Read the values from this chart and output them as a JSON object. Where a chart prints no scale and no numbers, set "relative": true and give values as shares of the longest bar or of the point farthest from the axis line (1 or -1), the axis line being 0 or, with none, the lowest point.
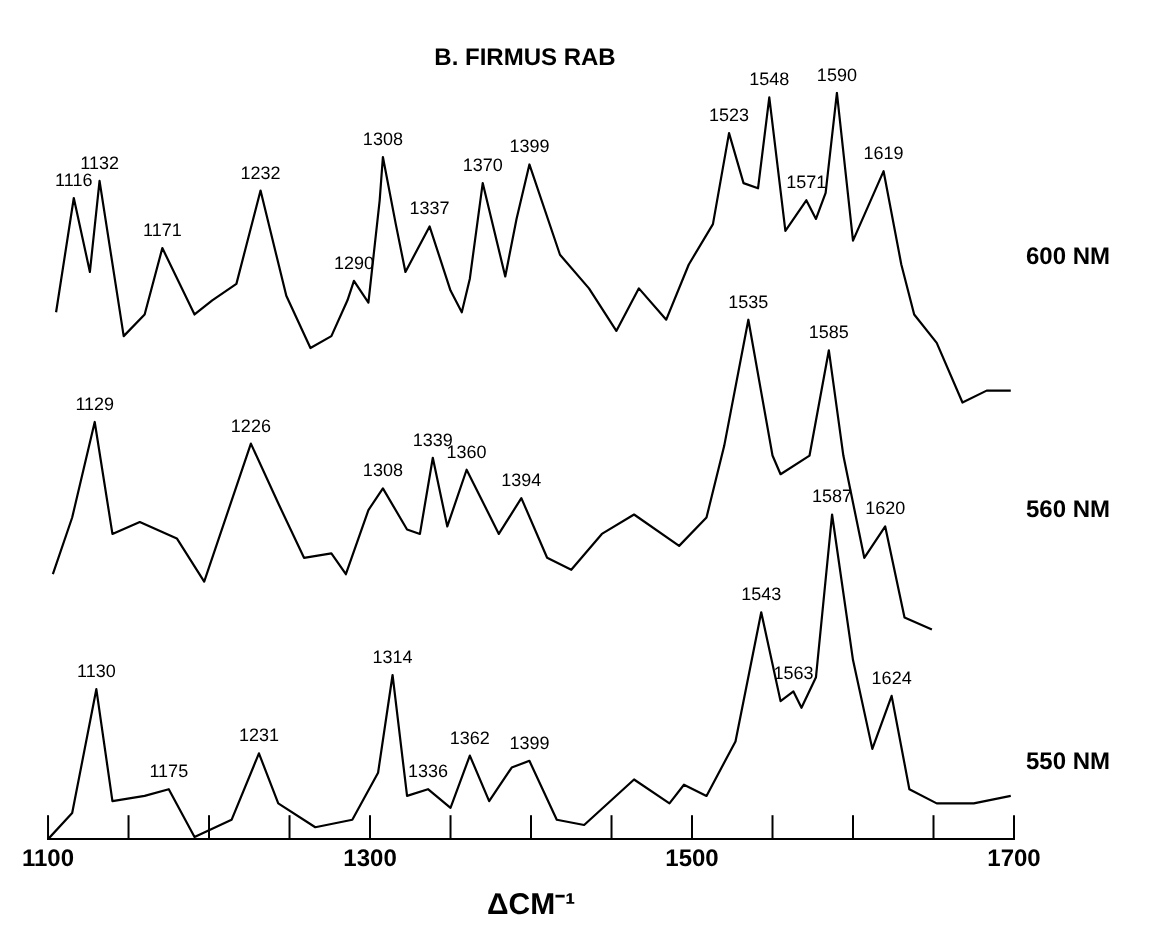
{
  "chart_data": {
    "type": "line",
    "title": "B. FIRMUS RAB",
    "xlabel": "ΔCM⁻¹",
    "relative": true,
    "xlim": [
      1100,
      1700
    ],
    "xticks": [
      1100,
      {
        "value": 1150,
        "label": null
      },
      {
        "value": 1200,
        "label": null
      },
      {
        "value": 1250,
        "label": null
      },
      1300,
      {
        "value": 1350,
        "label": null
      },
      {
        "value": 1400,
        "label": null
      },
      {
        "value": 1450,
        "label": null
      },
      1500,
      {
        "value": 1550,
        "label": null
      },
      {
        "value": 1600,
        "label": null
      },
      {
        "value": 1650,
        "label": null
      },
      1700
    ],
    "grid": false,
    "legend": false,
    "marker": "none",
    "line_style": "solid",
    "series": [
      {
        "name": "600 NM",
        "color": "#000000",
        "x": [
          1105,
          1116,
          1126,
          1132,
          1147,
          1160,
          1171,
          1191,
          1202,
          1217,
          1232,
          1248,
          1263,
          1276,
          1286,
          1290,
          1299,
          1306,
          1308,
          1316,
          1322,
          1337,
          1350,
          1357,
          1362,
          1370,
          1384,
          1391,
          1399,
          1418,
          1436,
          1453,
          1467,
          1484,
          1498,
          1513,
          1523,
          1532,
          1541,
          1548,
          1558,
          1571,
          1577,
          1583,
          1590,
          1600,
          1619,
          1630,
          1638,
          1652,
          1668,
          1683,
          1698
        ],
        "values": [
          0.706,
          0.859,
          0.76,
          0.882,
          0.674,
          0.703,
          0.792,
          0.703,
          0.722,
          0.744,
          0.869,
          0.728,
          0.658,
          0.674,
          0.722,
          0.748,
          0.719,
          0.856,
          0.914,
          0.824,
          0.76,
          0.821,
          0.735,
          0.706,
          0.751,
          0.879,
          0.754,
          0.831,
          0.904,
          0.783,
          0.738,
          0.681,
          0.738,
          0.696,
          0.77,
          0.824,
          0.946,
          0.879,
          0.872,
          0.994,
          0.815,
          0.856,
          0.831,
          0.866,
          1,
          0.802,
          0.895,
          0.77,
          0.703,
          0.665,
          0.585,
          0.601,
          0.601
        ]
      },
      {
        "name": "560 NM",
        "color": "#000000",
        "x": [
          1103,
          1115,
          1129,
          1140,
          1157,
          1180,
          1197,
          1226,
          1243,
          1259,
          1276,
          1285,
          1299,
          1308,
          1323,
          1331,
          1339,
          1348,
          1360,
          1380,
          1394,
          1410,
          1425,
          1444,
          1464,
          1492,
          1509,
          1520,
          1535,
          1550,
          1555,
          1573,
          1585,
          1594,
          1607,
          1620,
          1632,
          1649
        ],
        "values": [
          0.355,
          0.431,
          0.559,
          0.409,
          0.425,
          0.403,
          0.345,
          0.53,
          0.45,
          0.377,
          0.383,
          0.355,
          0.441,
          0.47,
          0.415,
          0.409,
          0.511,
          0.419,
          0.495,
          0.409,
          0.457,
          0.377,
          0.361,
          0.409,
          0.435,
          0.393,
          0.431,
          0.527,
          0.696,
          0.514,
          0.489,
          0.514,
          0.655,
          0.514,
          0.377,
          0.419,
          0.297,
          0.281
        ]
      },
      {
        "name": "550 NM",
        "color": "#000000",
        "x": [
          1100,
          1115,
          1130,
          1140,
          1160,
          1175,
          1191,
          1214,
          1231,
          1243,
          1266,
          1289,
          1305,
          1314,
          1323,
          1336,
          1350,
          1362,
          1374,
          1388,
          1399,
          1416,
          1433,
          1464,
          1486,
          1495,
          1509,
          1527,
          1543,
          1555,
          1563,
          1568,
          1577,
          1587,
          1600,
          1612,
          1624,
          1635,
          1652,
          1675,
          1698
        ],
        "values": [
          0,
          0.035,
          0.201,
          0.051,
          0.058,
          0.067,
          0.003,
          0.026,
          0.115,
          0.048,
          0.016,
          0.026,
          0.089,
          0.22,
          0.058,
          0.067,
          0.042,
          0.112,
          0.051,
          0.096,
          0.105,
          0.026,
          0.019,
          0.08,
          0.048,
          0.073,
          0.058,
          0.131,
          0.304,
          0.185,
          0.198,
          0.176,
          0.217,
          0.435,
          0.24,
          0.121,
          0.192,
          0.067,
          0.048,
          0.048,
          0.058
        ]
      }
    ],
    "annotations": [
      {
        "text": "1116",
        "x": 1116,
        "y": 0.859
      },
      {
        "text": "1132",
        "x": 1132,
        "y": 0.882
      },
      {
        "text": "1171",
        "x": 1171,
        "y": 0.792
      },
      {
        "text": "1232",
        "x": 1232,
        "y": 0.869
      },
      {
        "text": "1290",
        "x": 1290,
        "y": 0.748
      },
      {
        "text": "1308",
        "x": 1308,
        "y": 0.914
      },
      {
        "text": "1337",
        "x": 1337,
        "y": 0.821
      },
      {
        "text": "1370",
        "x": 1370,
        "y": 0.879
      },
      {
        "text": "1399",
        "x": 1399,
        "y": 0.904
      },
      {
        "text": "1523",
        "x": 1523,
        "y": 0.946
      },
      {
        "text": "1548",
        "x": 1548,
        "y": 0.994
      },
      {
        "text": "1571",
        "x": 1571,
        "y": 0.856
      },
      {
        "text": "1590",
        "x": 1590,
        "y": 1
      },
      {
        "text": "1619",
        "x": 1619,
        "y": 0.895
      },
      {
        "text": "1129",
        "x": 1129,
        "y": 0.559
      },
      {
        "text": "1226",
        "x": 1226,
        "y": 0.53
      },
      {
        "text": "1308",
        "x": 1308,
        "y": 0.47
      },
      {
        "text": "1339",
        "x": 1339,
        "y": 0.511
      },
      {
        "text": "1360",
        "x": 1360,
        "y": 0.495
      },
      {
        "text": "1394",
        "x": 1394,
        "y": 0.457
      },
      {
        "text": "1535",
        "x": 1535,
        "y": 0.696
      },
      {
        "text": "1585",
        "x": 1585,
        "y": 0.655
      },
      {
        "text": "1620",
        "x": 1620,
        "y": 0.419
      },
      {
        "text": "1130",
        "x": 1130,
        "y": 0.201
      },
      {
        "text": "1175",
        "x": 1175,
        "y": 0.067
      },
      {
        "text": "1231",
        "x": 1231,
        "y": 0.115
      },
      {
        "text": "1314",
        "x": 1314,
        "y": 0.22
      },
      {
        "text": "1336",
        "x": 1336,
        "y": 0.067
      },
      {
        "text": "1362",
        "x": 1362,
        "y": 0.112
      },
      {
        "text": "1399",
        "x": 1399,
        "y": 0.105
      },
      {
        "text": "1543",
        "x": 1543,
        "y": 0.304
      },
      {
        "text": "1563",
        "x": 1563,
        "y": 0.198
      },
      {
        "text": "1587",
        "x": 1587,
        "y": 0.435
      },
      {
        "text": "1624",
        "x": 1624,
        "y": 0.192
      }
    ]
  }
}
